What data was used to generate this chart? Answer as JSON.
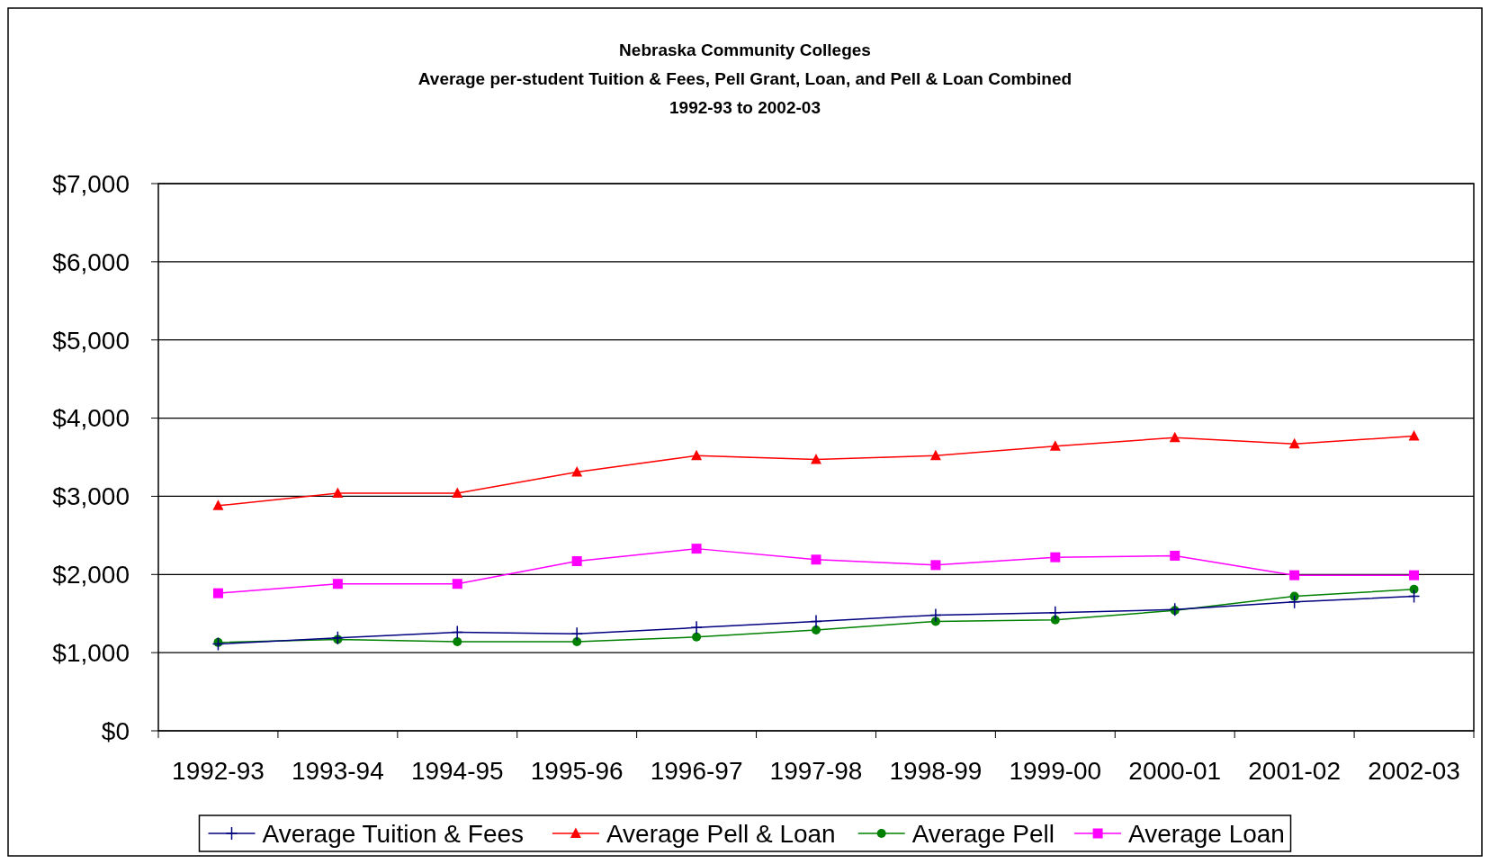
{
  "chart_data": {
    "type": "line",
    "title": "Nebraska Community Colleges",
    "subtitle": "Average per-student Tuition & Fees, Pell Grant, Loan, and Pell & Loan Combined\n1992-93 to 2002-03",
    "categories": [
      "1992-93",
      "1993-94",
      "1994-95",
      "1995-96",
      "1996-97",
      "1997-98",
      "1998-99",
      "1999-00",
      "2000-01",
      "2001-02",
      "2002-03"
    ],
    "ylim": [
      0,
      7000
    ],
    "yticks": [
      {
        "value": 0,
        "label": "$0"
      },
      {
        "value": 1000,
        "label": "$1,000"
      },
      {
        "value": 2000,
        "label": "$2,000"
      },
      {
        "value": 3000,
        "label": "$3,000"
      },
      {
        "value": 4000,
        "label": "$4,000"
      },
      {
        "value": 5000,
        "label": "$5,000"
      },
      {
        "value": 6000,
        "label": "$6,000"
      },
      {
        "value": 7000,
        "label": "$7,000"
      }
    ],
    "grid": "y",
    "legend": "bottom",
    "series": [
      {
        "name": "Average Tuition & Fees",
        "color": "#000080",
        "marker": "cross",
        "values": [
          1110,
          1190,
          1260,
          1240,
          1320,
          1400,
          1480,
          1510,
          1550,
          1650,
          1720
        ]
      },
      {
        "name": "Average Pell & Loan",
        "color": "#ff0000",
        "marker": "triangle",
        "values": [
          2880,
          3040,
          3040,
          3310,
          3520,
          3470,
          3520,
          3640,
          3750,
          3670,
          3770
        ]
      },
      {
        "name": "Average Pell",
        "color": "#008000",
        "marker": "circle",
        "values": [
          1130,
          1170,
          1140,
          1140,
          1200,
          1290,
          1400,
          1420,
          1540,
          1720,
          1810
        ]
      },
      {
        "name": "Average Loan",
        "color": "#ff00ff",
        "marker": "square",
        "values": [
          1760,
          1880,
          1880,
          2170,
          2330,
          2190,
          2120,
          2220,
          2240,
          1990,
          1990
        ]
      }
    ]
  }
}
